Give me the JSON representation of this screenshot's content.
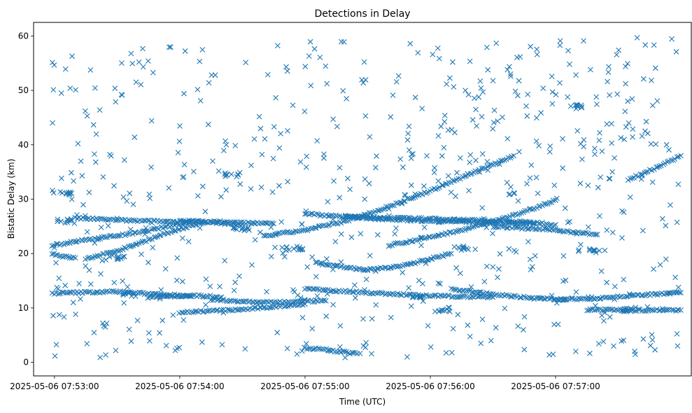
{
  "chart_data": {
    "type": "scatter",
    "title": "Detections in Delay",
    "xlabel": "Time (UTC)",
    "ylabel": "Bistatic Delay (km)",
    "x_tick_labels": [
      "2025-05-06 07:53:00",
      "2025-05-06 07:54:00",
      "2025-05-06 07:55:00",
      "2025-05-06 07:56:00",
      "2025-05-06 07:57:00"
    ],
    "x_ticks": [
      "07:53:00",
      "07:54:00",
      "07:55:00",
      "07:56:00",
      "07:57:00"
    ],
    "y_ticks": [
      0,
      10,
      20,
      30,
      40,
      50,
      60
    ],
    "xlim": [
      "07:52:50",
      "07:58:05"
    ],
    "ylim": [
      -2.5,
      62.5
    ],
    "x_data_range": [
      "07:52:59",
      "07:58:00"
    ],
    "marker": "x",
    "color": "#1f77b4",
    "grid": false,
    "legend": "none",
    "tracks": [
      {
        "x": [
          "07:52:59",
          "07:53:20",
          "07:53:40",
          "07:54:00",
          "07:54:05"
        ],
        "y": [
          21.5,
          22.8,
          23.8,
          25.5,
          25.8
        ]
      },
      {
        "x": [
          "07:52:59",
          "07:53:05",
          "07:53:10"
        ],
        "y": [
          20.0,
          19.4,
          19.2
        ]
      },
      {
        "x": [
          "07:53:15",
          "07:53:30",
          "07:53:45",
          "07:54:00",
          "07:54:12"
        ],
        "y": [
          19.0,
          20.5,
          22.5,
          24.5,
          25.8
        ]
      },
      {
        "x": [
          "07:53:10",
          "07:53:40",
          "07:54:10",
          "07:54:30"
        ],
        "y": [
          26.5,
          26.0,
          25.8,
          25.3
        ]
      },
      {
        "x": [
          "07:54:00",
          "07:54:20",
          "07:54:45"
        ],
        "y": [
          26.0,
          25.8,
          25.5
        ]
      },
      {
        "x": [
          "07:52:59",
          "07:53:30",
          "07:53:45",
          "07:54:10",
          "07:54:20"
        ],
        "y": [
          12.7,
          13.0,
          12.6,
          12.2,
          12.0
        ]
      },
      {
        "x": [
          "07:54:00",
          "07:54:30",
          "07:55:00"
        ],
        "y": [
          9.2,
          9.7,
          10.7
        ]
      },
      {
        "x": [
          "07:53:45",
          "07:54:00",
          "07:54:05"
        ],
        "y": [
          12.0,
          12.2,
          12.1
        ]
      },
      {
        "x": [
          "07:54:15",
          "07:54:40",
          "07:55:10"
        ],
        "y": [
          11.5,
          11.0,
          11.3
        ]
      },
      {
        "x": [
          "07:54:40",
          "07:55:00",
          "07:55:20",
          "07:55:40",
          "07:56:00",
          "07:56:20",
          "07:56:40"
        ],
        "y": [
          23.2,
          24.3,
          26.0,
          28.6,
          31.5,
          34.8,
          38.0
        ]
      },
      {
        "x": [
          "07:55:00",
          "07:55:30",
          "07:56:00",
          "07:56:30",
          "07:56:50"
        ],
        "y": [
          27.3,
          26.5,
          26.0,
          25.7,
          25.5
        ]
      },
      {
        "x": [
          "07:55:20",
          "07:55:45",
          "07:56:10",
          "07:56:30",
          "07:56:50",
          "07:57:00"
        ],
        "y": [
          26.8,
          26.5,
          26.3,
          26.0,
          25.7,
          25.3
        ]
      },
      {
        "x": [
          "07:55:40",
          "07:56:00",
          "07:56:20",
          "07:56:40",
          "07:57:00"
        ],
        "y": [
          21.5,
          23.0,
          24.8,
          27.0,
          29.8
        ]
      },
      {
        "x": [
          "07:56:30",
          "07:57:00",
          "07:57:20"
        ],
        "y": [
          25.0,
          24.3,
          23.5
        ]
      },
      {
        "x": [
          "07:55:05",
          "07:55:15",
          "07:55:25",
          "07:55:30"
        ],
        "y": [
          18.3,
          17.7,
          17.2,
          17.0
        ]
      },
      {
        "x": [
          "07:55:30",
          "07:55:45",
          "07:56:00",
          "07:56:10"
        ],
        "y": [
          17.0,
          17.6,
          19.0,
          20.0
        ]
      },
      {
        "x": [
          "07:55:00",
          "07:55:30",
          "07:56:00",
          "07:56:30"
        ],
        "y": [
          13.5,
          12.8,
          12.2,
          12.0
        ]
      },
      {
        "x": [
          "07:56:10",
          "07:56:30",
          "07:56:50",
          "07:57:05"
        ],
        "y": [
          13.5,
          12.5,
          11.8,
          11.5
        ]
      },
      {
        "x": [
          "07:57:00",
          "07:57:20",
          "07:57:40",
          "07:58:00"
        ],
        "y": [
          11.5,
          11.8,
          12.3,
          12.8
        ]
      },
      {
        "x": [
          "07:57:15",
          "07:57:30",
          "07:57:45",
          "07:58:00"
        ],
        "y": [
          9.6,
          9.6,
          9.6,
          9.6
        ]
      },
      {
        "x": [
          "07:57:35",
          "07:57:48",
          "07:58:00"
        ],
        "y": [
          33.5,
          35.8,
          38.0
        ]
      },
      {
        "x": [
          "07:55:00",
          "07:55:10",
          "07:55:20",
          "07:55:25"
        ],
        "y": [
          2.6,
          2.3,
          1.8,
          1.6
        ]
      }
    ],
    "clusters": [
      {
        "x": "07:53:05",
        "y": 31.0
      },
      {
        "x": "07:53:05",
        "y": 26.0
      },
      {
        "x": "07:53:30",
        "y": 19.3
      },
      {
        "x": "07:53:35",
        "y": 12.5
      },
      {
        "x": "07:54:25",
        "y": 34.5
      },
      {
        "x": "07:54:30",
        "y": 24.5
      },
      {
        "x": "07:54:55",
        "y": 20.8
      },
      {
        "x": "07:55:55",
        "y": 12.0
      },
      {
        "x": "07:56:05",
        "y": 9.7
      },
      {
        "x": "07:56:15",
        "y": 21.0
      },
      {
        "x": "07:57:20",
        "y": 20.5
      },
      {
        "x": "07:57:10",
        "y": 47.0
      },
      {
        "x": "07:57:35",
        "y": 9.7
      }
    ]
  }
}
